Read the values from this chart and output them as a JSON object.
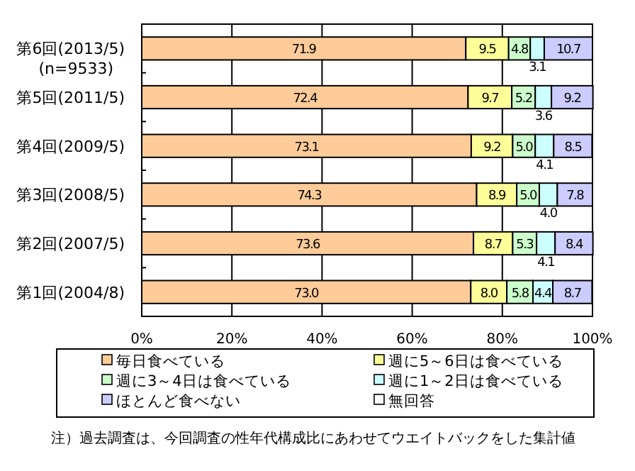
{
  "chart_data": {
    "type": "bar",
    "orientation": "horizontal",
    "stacked": true,
    "categories": [
      "第6回(2013/5)\n(n=9533)",
      "第5回(2011/5)",
      "第4回(2009/5)",
      "第3回(2008/5)",
      "第2回(2007/5)",
      "第1回(2004/8)"
    ],
    "series": [
      {
        "name": "毎日食べている",
        "color": "#ffcc99",
        "values": [
          71.9,
          72.4,
          73.1,
          74.3,
          73.6,
          73.0
        ],
        "value_labels": [
          "71.9",
          "72.4",
          "73.1",
          "74.3",
          "73.6",
          "73.0"
        ]
      },
      {
        "name": "週に5～6日は食べている",
        "color": "#ffff99",
        "values": [
          9.5,
          9.7,
          9.2,
          8.9,
          8.7,
          8.0
        ],
        "value_labels": [
          "9.5",
          "9.7",
          "9.2",
          "8.9",
          "8.7",
          "8.0"
        ]
      },
      {
        "name": "週に3～4日は食べている",
        "color": "#ccffcc",
        "values": [
          4.8,
          5.2,
          5.0,
          5.0,
          5.3,
          5.8
        ],
        "value_labels": [
          "4.8",
          "5.2",
          "5.0",
          "5.0",
          "5.3",
          "5.8"
        ]
      },
      {
        "name": "週に1～2日は食べている",
        "color": "#ccffff",
        "values": [
          3.1,
          3.6,
          4.1,
          4.0,
          4.1,
          4.4
        ],
        "value_labels": [
          "3.1",
          "3.6",
          "4.1",
          "4.0",
          "4.1",
          "4.4"
        ]
      },
      {
        "name": "ほとんど食べない",
        "color": "#ccccff",
        "values": [
          10.7,
          9.2,
          8.5,
          7.8,
          8.4,
          8.7
        ],
        "value_labels": [
          "10.7",
          "9.2",
          "8.5",
          "7.8",
          "8.4",
          "8.7"
        ]
      },
      {
        "name": "無回答",
        "color": "#ffffff",
        "values": [
          0,
          0,
          0,
          0,
          0,
          0
        ],
        "value_labels": [
          null,
          null,
          null,
          null,
          null,
          null
        ]
      }
    ],
    "xlim": [
      0,
      100
    ],
    "xticks": [
      {
        "value": 0,
        "label": "0%"
      },
      {
        "value": 20,
        "label": "20%"
      },
      {
        "value": 40,
        "label": "40%"
      },
      {
        "value": 60,
        "label": "60%"
      },
      {
        "value": 80,
        "label": "80%"
      },
      {
        "value": 100,
        "label": "100%"
      }
    ],
    "grid": "x",
    "legend": "bottom",
    "annotations": [
      "注）過去調査は、今回調査の性年代構成比にあわせてウエイトバックをした集計値"
    ]
  }
}
